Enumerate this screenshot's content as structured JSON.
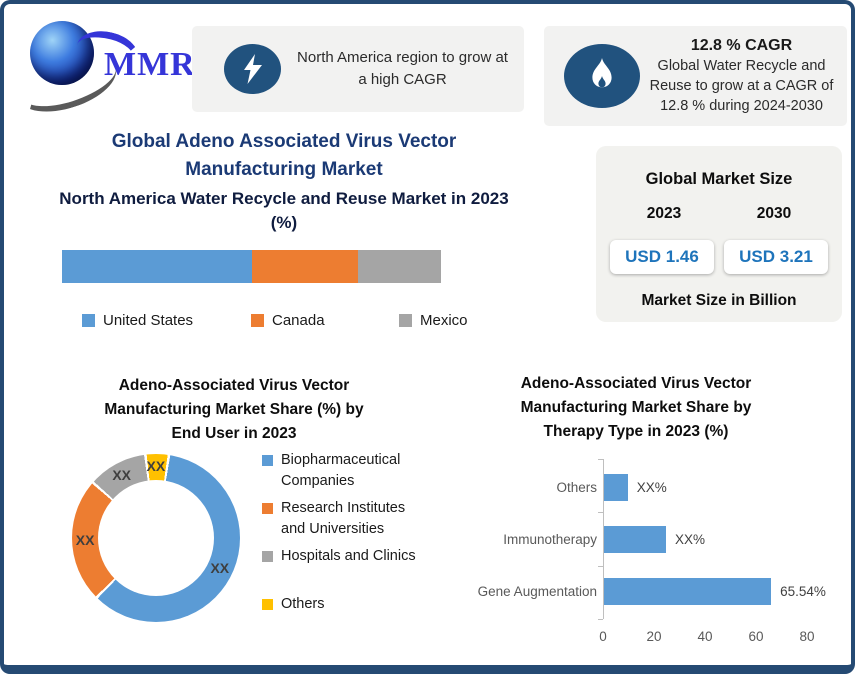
{
  "logo": {
    "text": "MMR",
    "text_color": "#3535d8"
  },
  "header": {
    "callout_left": {
      "icon": "lightning-bolt",
      "icon_bg": "#21527e",
      "text": "North America region to grow at a high CAGR"
    },
    "callout_right": {
      "icon": "flame",
      "icon_bg": "#21527e",
      "headline": "12.8 % CAGR",
      "text": "Global Water Recycle and Reuse to grow at a CAGR of 12.8 % during 2024-2030"
    }
  },
  "main_title": {
    "line1": "Global Adeno Associated Virus Vector",
    "line2": "Manufacturing Market",
    "color": "#1b3a75"
  },
  "market_size_panel": {
    "title": "Global Market Size",
    "year_left": "2023",
    "year_right": "2030",
    "value_left": "USD 1.46",
    "value_right": "USD 3.21",
    "footnote": "Market Size in Billion",
    "value_color": "#1e74bb"
  },
  "chart_data": [
    {
      "id": "na_stacked_bar",
      "type": "bar",
      "subtype": "stacked-horizontal",
      "title": "North America Water Recycle and Reuse Market in 2023 (%)",
      "categories": [
        "United States",
        "Canada",
        "Mexico"
      ],
      "values": [
        50,
        28,
        22
      ],
      "colors": [
        "#5B9BD5",
        "#ED7D31",
        "#A5A5A5"
      ],
      "value_labels_shown": false,
      "legend_position": "bottom"
    },
    {
      "id": "end_user_donut",
      "type": "pie",
      "subtype": "donut",
      "title": "Adeno-Associated Virus Vector Manufacturing Market Share (%) by End User in 2023",
      "title_lines": [
        "Adeno-Associated Virus Vector",
        "Manufacturing Market Share (%) by",
        "End User in 2023"
      ],
      "start_angle_deg": 8,
      "segments": [
        {
          "name": "Biopharmaceutical\nCompanies",
          "value": 60,
          "label": "XX",
          "color": "#5B9BD5"
        },
        {
          "name": "Research Institutes\nand Universities",
          "value": 24,
          "label": "XX",
          "color": "#ED7D31"
        },
        {
          "name": "Hospitals and Clinics",
          "value": 11.5,
          "label": "XX",
          "color": "#A5A5A5"
        },
        {
          "name": "Others",
          "value": 4.5,
          "label": "XX",
          "color": "#FFC000"
        }
      ],
      "legend_position": "right"
    },
    {
      "id": "therapy_type_bars",
      "type": "bar",
      "subtype": "horizontal",
      "title": "Adeno-Associated Virus Vector Manufacturing Market Share by Therapy Type in 2023 (%)",
      "title_lines": [
        "Adeno-Associated Virus Vector",
        "Manufacturing Market Share by",
        "Therapy Type in 2023 (%)"
      ],
      "categories": [
        "Others",
        "Immunotherapy",
        "Gene Augmentation"
      ],
      "values": [
        9.3,
        24.3,
        65.54
      ],
      "labels": [
        "XX%",
        "XX%",
        "65.54%"
      ],
      "bar_color": "#5B9BD5",
      "xlim": [
        0,
        80
      ],
      "xticks": [
        0,
        20,
        40,
        60,
        80
      ]
    }
  ]
}
